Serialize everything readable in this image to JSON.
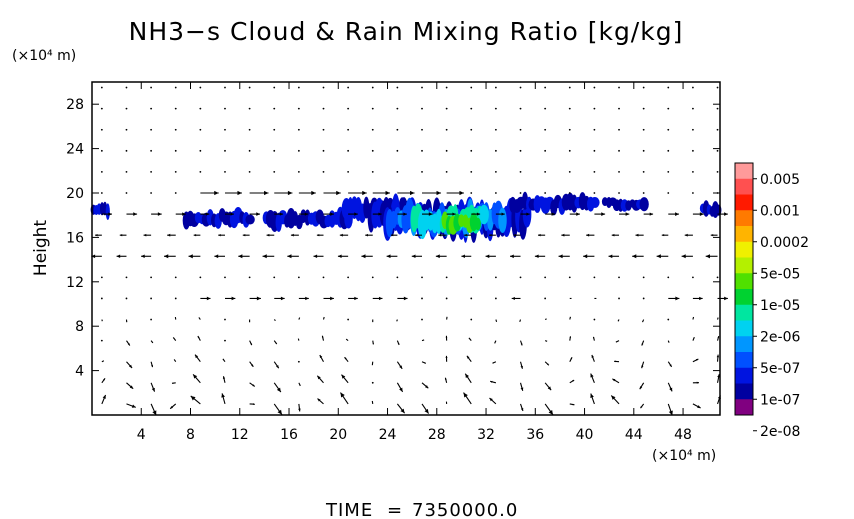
{
  "chart_data": {
    "type": "heatmap",
    "title": "NH3−s Cloud & Rain Mixing Ratio [kg/kg]",
    "x_unit": "(×10⁴ m)",
    "y_unit": "(×10⁴ m)",
    "ylabel": "Height",
    "xlim": [
      0,
      51
    ],
    "ylim": [
      0,
      30
    ],
    "x_ticks": [
      "4",
      "8",
      "12",
      "16",
      "20",
      "24",
      "28",
      "32",
      "36",
      "40",
      "44",
      "48"
    ],
    "y_ticks": [
      "4",
      "8",
      "12",
      "16",
      "20",
      "24",
      "28"
    ],
    "x_tick_values": [
      4,
      8,
      12,
      16,
      20,
      24,
      28,
      32,
      36,
      40,
      44,
      48
    ],
    "y_tick_values": [
      4,
      8,
      12,
      16,
      20,
      24,
      28
    ],
    "legend": {
      "labels": [
        "0.005",
        "0.001",
        "0.0002",
        "5e-05",
        "1e-05",
        "2e-06",
        "5e-07",
        "1e-07",
        "2e-08"
      ],
      "colors_top_to_bottom": [
        "#ff9a9a",
        "#ff5050",
        "#ff1a00",
        "#ff7a00",
        "#ffb400",
        "#f0f000",
        "#b4f000",
        "#50e000",
        "#00d230",
        "#00e6a0",
        "#00d2f0",
        "#0096ff",
        "#0050ff",
        "#0014e0",
        "#0000a0",
        "#800080"
      ]
    },
    "clouds": [
      {
        "x0": 0.0,
        "x1": 1.4,
        "y0": 17.8,
        "y1": 19.2,
        "level": 1
      },
      {
        "x0": 7.5,
        "x1": 13.0,
        "y0": 17.0,
        "y1": 18.5,
        "level": 1
      },
      {
        "x0": 14.0,
        "x1": 21.0,
        "y0": 16.8,
        "y1": 18.6,
        "level": 1
      },
      {
        "x0": 20.5,
        "x1": 26.0,
        "y0": 17.5,
        "y1": 19.6,
        "level": 1
      },
      {
        "x0": 22.5,
        "x1": 35.5,
        "y0": 16.0,
        "y1": 19.4,
        "level": 1
      },
      {
        "x0": 24.0,
        "x1": 33.5,
        "y0": 16.4,
        "y1": 19.0,
        "level": 3
      },
      {
        "x0": 26.0,
        "x1": 32.0,
        "y0": 16.4,
        "y1": 18.8,
        "level": 5
      },
      {
        "x0": 28.5,
        "x1": 31.5,
        "y0": 16.5,
        "y1": 18.2,
        "level": 7
      },
      {
        "x0": 34.0,
        "x1": 41.0,
        "y0": 18.2,
        "y1": 19.8,
        "level": 1
      },
      {
        "x0": 41.5,
        "x1": 45.0,
        "y0": 18.4,
        "y1": 19.6,
        "level": 1
      },
      {
        "x0": 49.5,
        "x1": 51.0,
        "y0": 17.8,
        "y1": 19.2,
        "level": 1
      }
    ],
    "wind_jets": [
      {
        "y": 20.0,
        "x0": 8,
        "x1": 30,
        "u": 1.0
      },
      {
        "y": 18.0,
        "x0": 0,
        "x1": 51,
        "u": 0.6
      },
      {
        "y": 16.0,
        "x0": 0,
        "x1": 51,
        "u": -0.5
      },
      {
        "y": 14.0,
        "x0": 0,
        "x1": 51,
        "u": -0.8
      },
      {
        "y": 11.0,
        "x0": 36,
        "x1": 51,
        "u": 1.0
      },
      {
        "y": 10.0,
        "x0": 8,
        "x1": 26,
        "u": 1.0
      },
      {
        "y": 10.0,
        "x0": 34,
        "x1": 46,
        "u": -0.9
      }
    ],
    "grid": false
  },
  "footer": {
    "time_label": "TIME",
    "time_eq": "=",
    "time_value": "7350000.0"
  }
}
